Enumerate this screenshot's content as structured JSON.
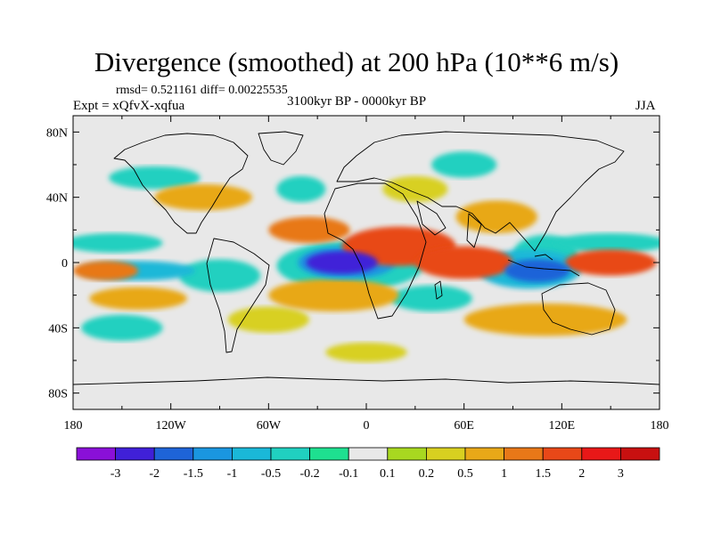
{
  "chart_data": {
    "type": "heatmap",
    "title": "Divergence (smoothed) at 200 hPa (10**6 m/s)",
    "rmsd_label": "rmsd= 0.521161 diff= 0.00225535",
    "experiment": "Expt = xQfvX-xqfua",
    "period": "3100kyr BP - 0000kyr BP",
    "season": "JJA",
    "x_ticks": [
      "180",
      "120W",
      "60W",
      "0",
      "60E",
      "120E",
      "180"
    ],
    "y_ticks": [
      "80N",
      "40N",
      "0",
      "40S",
      "80S"
    ],
    "x_tick_values": [
      -180,
      -120,
      -60,
      0,
      60,
      120,
      180
    ],
    "y_tick_values": [
      80,
      40,
      0,
      -40,
      -80
    ],
    "xlim": [
      -180,
      180
    ],
    "ylim": [
      -90,
      90
    ],
    "levels": [
      "-3",
      "-2",
      "-1.5",
      "-1",
      "-0.5",
      "-0.2",
      "-0.1",
      "0.1",
      "0.2",
      "0.5",
      "1",
      "1.5",
      "2",
      "3"
    ],
    "colors": [
      "#8a10d8",
      "#4020d8",
      "#1e64d8",
      "#1a96e0",
      "#1ab8d8",
      "#20d0c0",
      "#1ee090",
      "#e8e8e8",
      "#a8d820",
      "#d8d020",
      "#e8a818",
      "#e87818",
      "#e84818",
      "#e81818",
      "#c81010"
    ],
    "blobs": [
      {
        "lon": -15,
        "lat": 0,
        "rlon": 22,
        "rlat": 7,
        "value": -3
      },
      {
        "lon": -12,
        "lat": 0,
        "rlon": 30,
        "rlat": 10,
        "value": -1.5
      },
      {
        "lon": -10,
        "lat": -2,
        "rlon": 45,
        "rlat": 15,
        "value": -0.5
      },
      {
        "lon": 105,
        "lat": -5,
        "rlon": 20,
        "rlat": 7,
        "value": -2
      },
      {
        "lon": 100,
        "lat": -4,
        "rlon": 32,
        "rlat": 12,
        "value": -1
      },
      {
        "lon": 110,
        "lat": 5,
        "rlon": 20,
        "rlat": 12,
        "value": -0.5
      },
      {
        "lon": 150,
        "lat": 12,
        "rlon": 35,
        "rlat": 6,
        "value": -0.5
      },
      {
        "lon": -155,
        "lat": 12,
        "rlon": 30,
        "rlat": 6,
        "value": -0.5
      },
      {
        "lon": -140,
        "lat": -5,
        "rlon": 35,
        "rlat": 6,
        "value": -1
      },
      {
        "lon": -90,
        "lat": -8,
        "rlon": 25,
        "rlat": 10,
        "value": -0.5
      },
      {
        "lon": -130,
        "lat": 52,
        "rlon": 28,
        "rlat": 7,
        "value": -0.5
      },
      {
        "lon": -40,
        "lat": 45,
        "rlon": 15,
        "rlat": 8,
        "value": -0.3
      },
      {
        "lon": 40,
        "lat": -22,
        "rlon": 25,
        "rlat": 8,
        "value": -0.5
      },
      {
        "lon": -150,
        "lat": -40,
        "rlon": 25,
        "rlat": 8,
        "value": -0.3
      },
      {
        "lon": 60,
        "lat": 60,
        "rlon": 20,
        "rlat": 8,
        "value": -0.3
      },
      {
        "lon": 20,
        "lat": 10,
        "rlon": 35,
        "rlat": 12,
        "value": 1.5
      },
      {
        "lon": 60,
        "lat": 0,
        "rlon": 30,
        "rlat": 10,
        "value": 1.5
      },
      {
        "lon": -35,
        "lat": 20,
        "rlon": 25,
        "rlat": 8,
        "value": 1
      },
      {
        "lon": -20,
        "lat": -20,
        "rlon": 40,
        "rlat": 10,
        "value": 0.5
      },
      {
        "lon": 150,
        "lat": 0,
        "rlon": 28,
        "rlat": 8,
        "value": 1.5
      },
      {
        "lon": -160,
        "lat": -5,
        "rlon": 20,
        "rlat": 6,
        "value": 1
      },
      {
        "lon": 80,
        "lat": 28,
        "rlon": 25,
        "rlat": 10,
        "value": 0.5
      },
      {
        "lon": -100,
        "lat": 40,
        "rlon": 30,
        "rlat": 8,
        "value": 0.5
      },
      {
        "lon": 110,
        "lat": -35,
        "rlon": 50,
        "rlat": 10,
        "value": 0.5
      },
      {
        "lon": -140,
        "lat": -22,
        "rlon": 30,
        "rlat": 7,
        "value": 0.5
      },
      {
        "lon": -60,
        "lat": -35,
        "rlon": 25,
        "rlat": 8,
        "value": 0.3
      },
      {
        "lon": 0,
        "lat": -55,
        "rlon": 25,
        "rlat": 6,
        "value": 0.3
      },
      {
        "lon": 30,
        "lat": 45,
        "rlon": 20,
        "rlat": 8,
        "value": 0.4
      }
    ]
  }
}
